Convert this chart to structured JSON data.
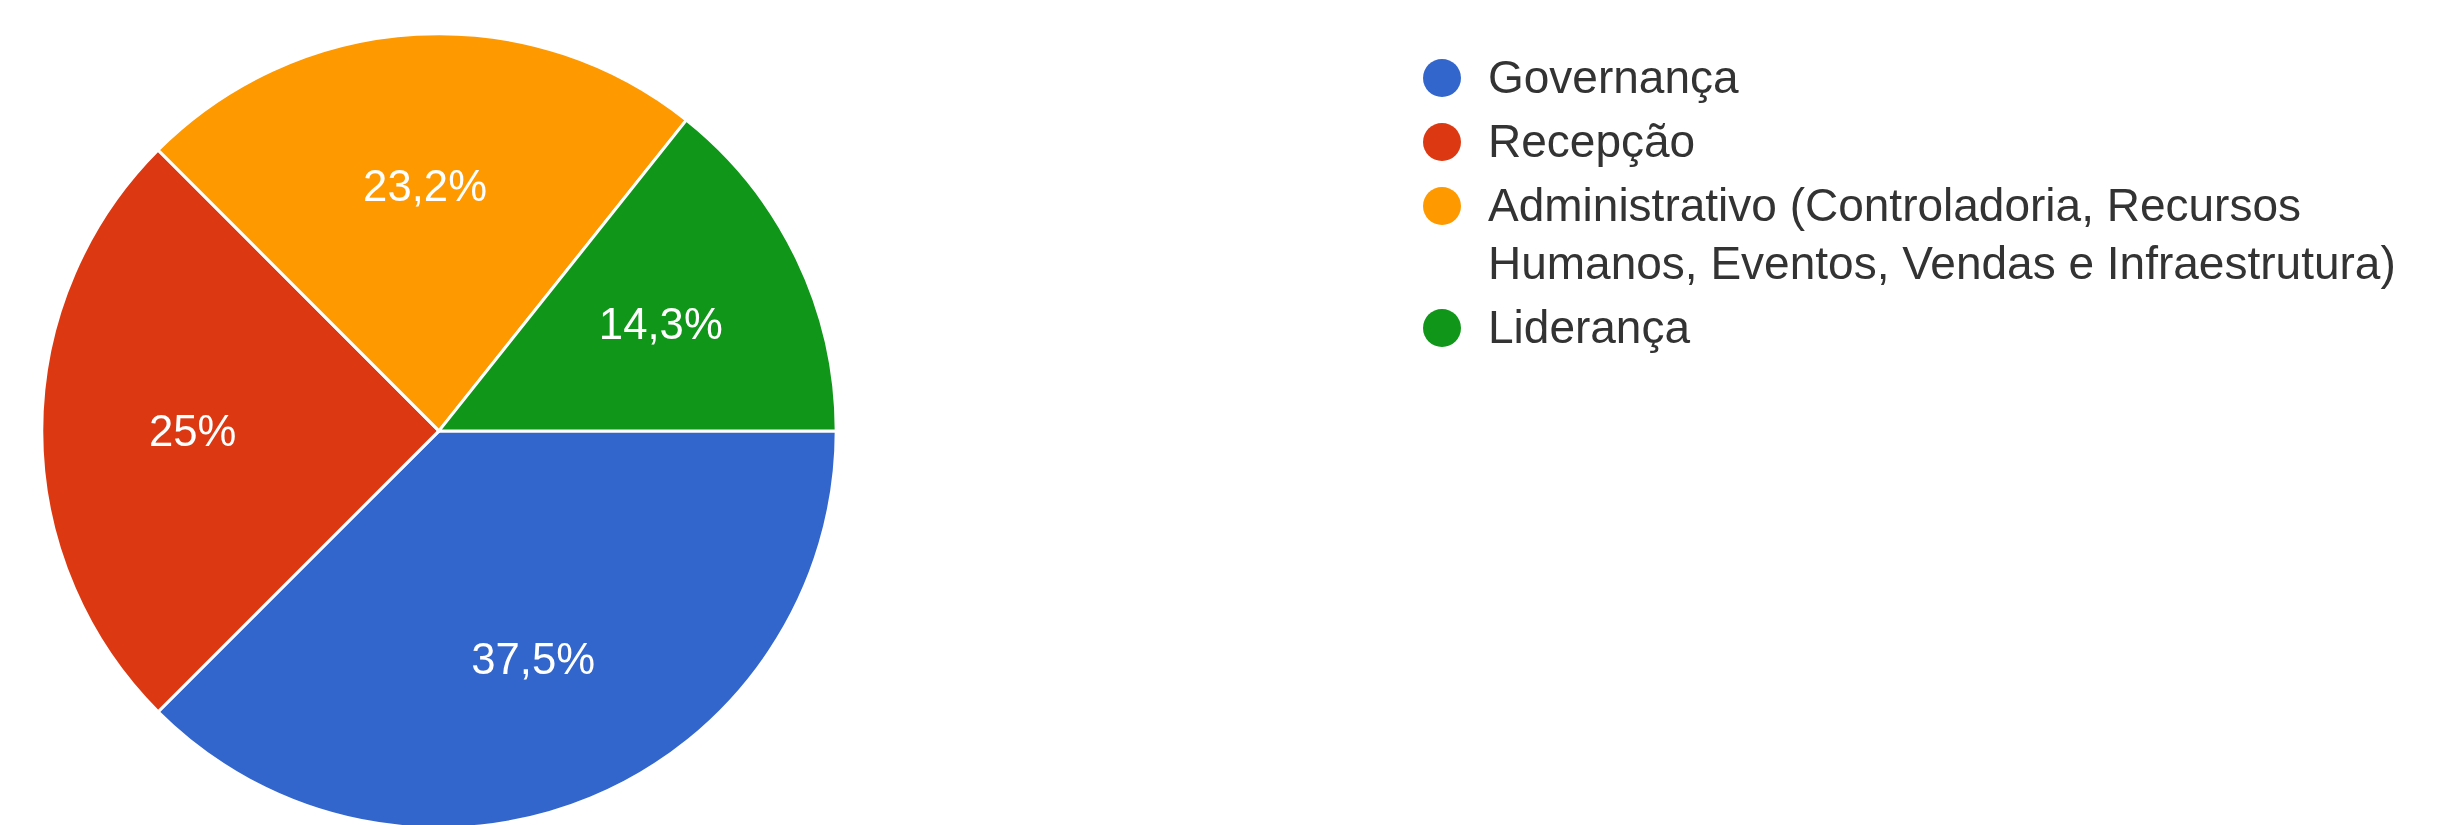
{
  "chart_data": {
    "type": "pie",
    "categories": [
      "Governança",
      "Recepção",
      "Administrativo (Controladoria, Recursos Humanos, Eventos, Vendas e Infraestrutura)",
      "Liderança"
    ],
    "values": [
      37.5,
      25,
      23.2,
      14.3
    ],
    "colors": [
      "#3366cc",
      "#dc3912",
      "#ff9900",
      "#109618"
    ],
    "value_labels": [
      "37,5%",
      "25%",
      "23,2%",
      "14,3%"
    ],
    "legend": "right"
  }
}
